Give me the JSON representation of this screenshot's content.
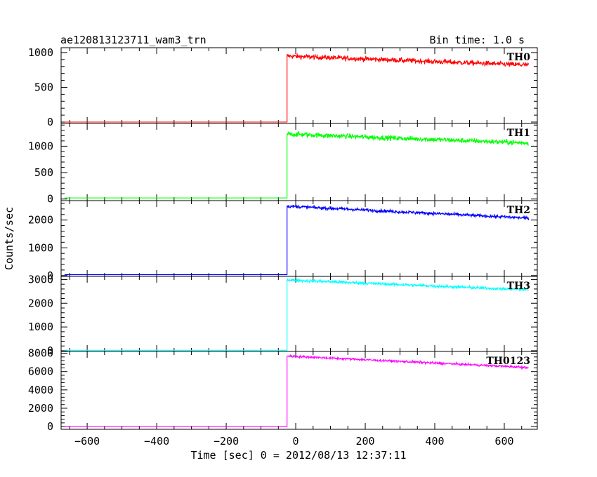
{
  "chart_data": {
    "type": "line",
    "title": "ae120813123711_wam3_trn",
    "bin_time": "Bin time: 1.0 s",
    "xlabel": "Time [sec] 0 = 2012/08/13 12:37:11",
    "ylabel": "Counts/sec",
    "xlim": [
      -675,
      695
    ],
    "xticks": [
      -600,
      -400,
      -200,
      0,
      200,
      400,
      600
    ],
    "step_time": -25,
    "x_end": 670,
    "grid": false,
    "panels": [
      {
        "label": "TH0",
        "color": "#ff0000",
        "ylim": [
          -20,
          1070
        ],
        "yticks": [
          0,
          500,
          1000
        ],
        "pre_level": 0,
        "post_start": 950,
        "post_end": 820,
        "noise": 35
      },
      {
        "label": "TH1",
        "color": "#00ff00",
        "ylim": [
          -30,
          1430
        ],
        "yticks": [
          0,
          500,
          1000
        ],
        "pre_level": 20,
        "post_start": 1230,
        "post_end": 1060,
        "noise": 45
      },
      {
        "label": "TH2",
        "color": "#0000ff",
        "ylim": [
          -30,
          2700
        ],
        "yticks": [
          0,
          1000,
          2000
        ],
        "pre_level": 30,
        "post_start": 2500,
        "post_end": 2070,
        "noise": 55
      },
      {
        "label": "TH3",
        "color": "#00ffff",
        "ylim": [
          -30,
          3130
        ],
        "yticks": [
          0,
          1000,
          2000,
          3000
        ],
        "pre_level": 20,
        "post_start": 2980,
        "post_end": 2560,
        "noise": 60
      },
      {
        "label": "TH0123",
        "color": "#ff00ff",
        "ylim": [
          -300,
          8200
        ],
        "yticks": [
          0,
          2000,
          4000,
          6000,
          8000
        ],
        "pre_level": 0,
        "post_start": 7700,
        "post_end": 6450,
        "noise": 120
      }
    ]
  }
}
